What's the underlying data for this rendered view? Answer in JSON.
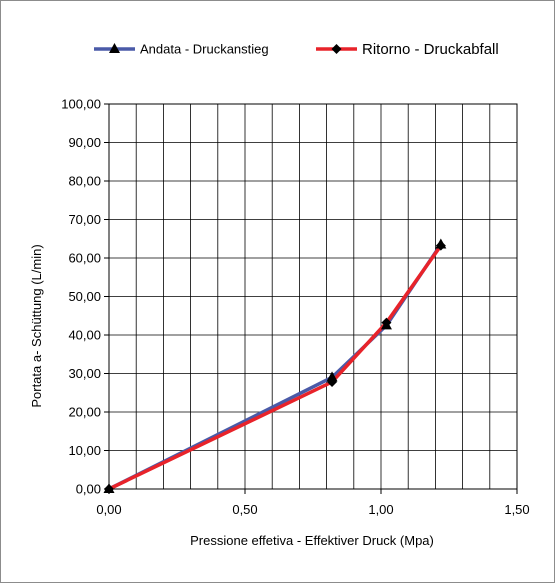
{
  "chart_data": {
    "type": "line",
    "title": "",
    "xlabel": "Pressione effetiva - Effektiver Druck (Mpa)",
    "ylabel": "Portata a- Schüttung (L/min)",
    "xlim": [
      0,
      1.5
    ],
    "ylim": [
      0,
      100
    ],
    "x_ticks": [
      "0,00",
      "0,50",
      "1,00",
      "1,50"
    ],
    "y_ticks": [
      "0,00",
      "10,00",
      "20,00",
      "30,00",
      "40,00",
      "50,00",
      "60,00",
      "70,00",
      "80,00",
      "90,00",
      "100,00"
    ],
    "grid": true,
    "legend_position": "top",
    "series": [
      {
        "name": "Andata - Druckanstieg",
        "color": "#4a5aa8",
        "marker": "triangle",
        "points": [
          {
            "x": 0.0,
            "y": 0.0
          },
          {
            "x": 0.82,
            "y": 29.0
          },
          {
            "x": 1.02,
            "y": 42.5
          },
          {
            "x": 1.22,
            "y": 63.5
          }
        ]
      },
      {
        "name": "Ritorno - Druckabfall",
        "color": "#e8232a",
        "marker": "diamond",
        "points": [
          {
            "x": 0.0,
            "y": 0.0
          },
          {
            "x": 0.82,
            "y": 27.8
          },
          {
            "x": 1.02,
            "y": 43.2
          },
          {
            "x": 1.22,
            "y": 63.2
          }
        ]
      }
    ]
  }
}
